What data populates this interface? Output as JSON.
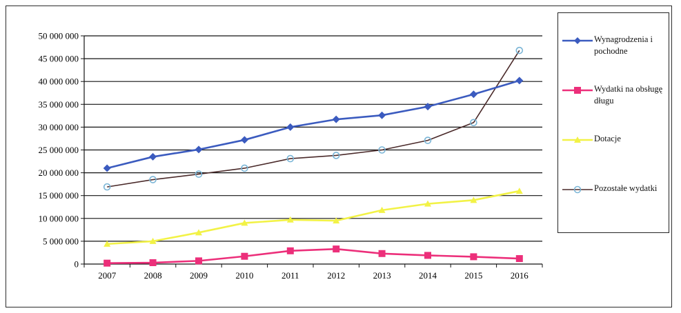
{
  "chart_data": {
    "type": "line",
    "title": "",
    "xlabel": "",
    "ylabel": "",
    "categories": [
      "2007",
      "2008",
      "2009",
      "2010",
      "2011",
      "2012",
      "2013",
      "2014",
      "2015",
      "2016"
    ],
    "ylim": [
      0,
      50000000
    ],
    "y_ticks": [
      "0",
      "5 000 000",
      "10 000 000",
      "15 000 000",
      "20 000 000",
      "25 000 000",
      "30 000 000",
      "35 000 000",
      "40 000 000",
      "45 000 000",
      "50 000 000"
    ],
    "grid": true,
    "legend_position": "right",
    "series": [
      {
        "name": "Wynagrodzenia i pochodne",
        "color": "#3b5bbf",
        "marker": "diamond",
        "values": [
          21000000,
          23500000,
          25100000,
          27200000,
          30000000,
          31700000,
          32600000,
          34500000,
          37200000,
          40200000
        ]
      },
      {
        "name": "Wydatki na obsługę długu",
        "color": "#ec2f7a",
        "marker": "square",
        "values": [
          200000,
          300000,
          700000,
          1700000,
          2900000,
          3300000,
          2300000,
          1900000,
          1600000,
          1200000
        ]
      },
      {
        "name": "Dotacje",
        "color": "#f2f246",
        "marker": "triangle",
        "values": [
          4400000,
          5000000,
          6900000,
          9000000,
          9700000,
          9500000,
          11800000,
          13200000,
          14000000,
          16000000
        ]
      },
      {
        "name": "Pozostałe wydatki",
        "color": "#7ab5d6",
        "line_color": "#4a2a2a",
        "marker": "circle",
        "values": [
          16900000,
          18500000,
          19700000,
          21000000,
          23100000,
          23800000,
          25000000,
          27100000,
          31000000,
          46800000
        ]
      }
    ]
  }
}
